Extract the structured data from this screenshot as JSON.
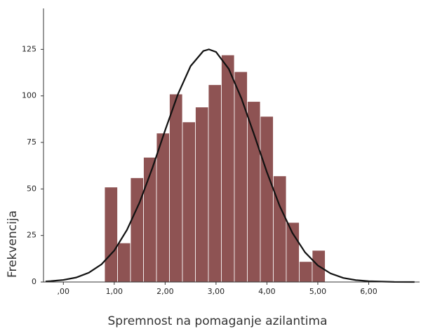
{
  "chart_data": {
    "type": "histogram",
    "x_label": "Spremnost na pomaganje azilantima",
    "y_label": "Frekvencija",
    "bins": [
      0.81,
      1.065,
      1.32,
      1.575,
      1.83,
      2.085,
      2.34,
      2.595,
      2.85,
      3.105,
      3.36,
      3.615,
      3.87,
      4.125,
      4.38,
      4.635,
      4.89,
      5.145
    ],
    "values": [
      51,
      21,
      56,
      67,
      80,
      101,
      86,
      94,
      106,
      122,
      113,
      97,
      89,
      57,
      32,
      11,
      17
    ],
    "color": "#8e5353",
    "curve": {
      "color": "#111111",
      "x": [
        -0.35,
        -0.25,
        0,
        0.25,
        0.5,
        0.75,
        1.0,
        1.25,
        1.5,
        1.75,
        2.0,
        2.25,
        2.5,
        2.75,
        2.86,
        3.0,
        3.25,
        3.5,
        3.75,
        4.0,
        4.25,
        4.5,
        4.75,
        5.0,
        5.25,
        5.5,
        5.75,
        6.0,
        6.5,
        6.9
      ],
      "values": [
        0.3,
        0.47,
        1.1,
        2.4,
        5.0,
        9.5,
        16.9,
        28.0,
        42.9,
        61.3,
        81.5,
        100.8,
        116.0,
        124.1,
        125,
        123.6,
        114.5,
        98.6,
        79.1,
        59.0,
        40.9,
        26.4,
        15.9,
        8.9,
        4.6,
        2.2,
        1.0,
        0.42,
        0.05,
        0
      ]
    },
    "xlim": [
      -0.39,
      7.0
    ],
    "ylim": [
      0,
      147
    ],
    "xticks": [
      {
        "value": 0,
        "label": ",00"
      },
      {
        "value": 1,
        "label": "1,00"
      },
      {
        "value": 2,
        "label": "2,00"
      },
      {
        "value": 3,
        "label": "3,00"
      },
      {
        "value": 4,
        "label": "4,00"
      },
      {
        "value": 5,
        "label": "5,00"
      },
      {
        "value": 6,
        "label": "6,00"
      }
    ],
    "yticks": [
      0,
      25,
      50,
      75,
      100,
      125
    ],
    "grid": false
  }
}
